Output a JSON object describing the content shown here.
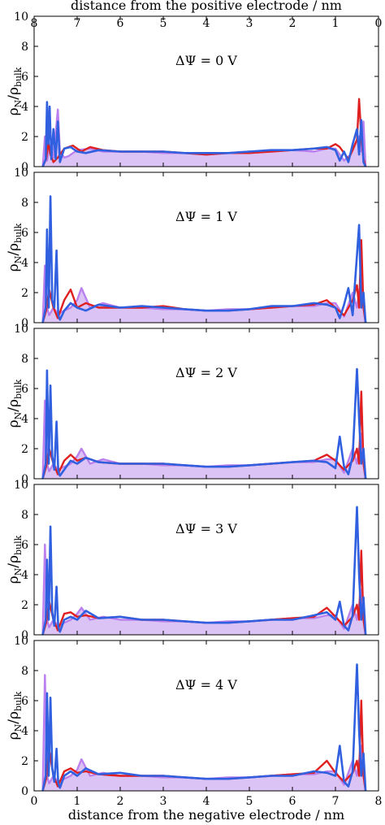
{
  "top_axis": {
    "label": "distance from the positive electrode / nm",
    "ticks": [
      "8",
      "7",
      "6",
      "5",
      "4",
      "3",
      "2",
      "1",
      "0"
    ]
  },
  "bottom_axis": {
    "label": "distance from the negative electrode / nm",
    "ticks": [
      "0",
      "1",
      "2",
      "3",
      "4",
      "5",
      "6",
      "7",
      "8"
    ]
  },
  "y_axis": {
    "label_main": "ρ",
    "label_sub_n": "N",
    "label_slash": "/ρ",
    "label_sub_bulk": "bulk",
    "ticks": [
      "0",
      "2",
      "4",
      "6",
      "8",
      "10"
    ]
  },
  "colors": {
    "red": "#e02020",
    "blue": "#3060e0",
    "violet": "#bb80ee",
    "fill": "#dcc3f5"
  },
  "chart_data": [
    {
      "type": "line",
      "annotation": "ΔΨ = 0 V",
      "xlim": [
        0,
        8
      ],
      "ylim": [
        0,
        10
      ],
      "xlabel": "",
      "ylabel": "ρN/ρbulk",
      "series": [
        {
          "color": "red",
          "x": [
            0.2,
            0.28,
            0.33,
            0.38,
            0.45,
            0.55,
            0.7,
            0.9,
            1.1,
            1.3,
            1.6,
            2.0,
            2.5,
            3.0,
            3.5,
            4.0,
            4.5,
            5.0,
            5.5,
            6.0,
            6.5,
            6.8,
            7.0,
            7.1,
            7.2,
            7.3,
            7.4,
            7.5,
            7.55,
            7.6,
            7.65,
            7.7
          ],
          "y": [
            0,
            0.5,
            1.6,
            0.8,
            0.3,
            0.6,
            1.2,
            1.4,
            1.0,
            1.3,
            1.1,
            1.0,
            1.0,
            1.0,
            0.9,
            0.8,
            0.9,
            0.9,
            1.0,
            1.1,
            1.2,
            1.2,
            1.5,
            1.3,
            0.9,
            0.5,
            1.1,
            1.8,
            4.5,
            2.0,
            0.5,
            0
          ]
        },
        {
          "color": "blue",
          "x": [
            0.2,
            0.27,
            0.3,
            0.33,
            0.36,
            0.4,
            0.45,
            0.5,
            0.55,
            0.6,
            0.7,
            0.85,
            1.0,
            1.2,
            1.5,
            2.0,
            2.5,
            3.0,
            3.5,
            4.0,
            4.5,
            5.0,
            5.5,
            6.0,
            6.5,
            6.8,
            7.0,
            7.1,
            7.2,
            7.3,
            7.4,
            7.5,
            7.55,
            7.6,
            7.65,
            7.7
          ],
          "y": [
            0,
            0.5,
            4.3,
            1.5,
            4.0,
            0.5,
            2.5,
            0.5,
            3.0,
            0.3,
            1.2,
            1.3,
            1.0,
            0.9,
            1.1,
            1.0,
            1.0,
            1.0,
            0.9,
            0.9,
            0.9,
            1.0,
            1.1,
            1.1,
            1.2,
            1.3,
            1.1,
            0.4,
            1.0,
            0.3,
            1.5,
            2.5,
            0.8,
            3.1,
            0.3,
            0
          ]
        },
        {
          "color": "violet",
          "x": [
            0.2,
            0.25,
            0.3,
            0.35,
            0.45,
            0.55,
            0.6,
            0.7,
            0.8,
            1.0,
            1.3,
            1.6,
            2.0,
            2.5,
            3.0,
            3.5,
            4.0,
            4.5,
            5.0,
            5.5,
            6.0,
            6.5,
            6.8,
            7.0,
            7.2,
            7.35,
            7.45,
            7.55,
            7.6,
            7.65,
            7.7
          ],
          "y": [
            0,
            2.0,
            0.4,
            1.3,
            0.6,
            3.8,
            1.0,
            0.6,
            0.7,
            1.1,
            1.2,
            1.0,
            1.0,
            1.0,
            0.9,
            0.9,
            0.8,
            0.9,
            1.0,
            1.0,
            1.1,
            1.0,
            1.2,
            1.2,
            0.4,
            0.8,
            1.5,
            2.0,
            1.0,
            3.0,
            0
          ]
        }
      ]
    },
    {
      "type": "line",
      "annotation": "ΔΨ = 1 V",
      "xlim": [
        0,
        8
      ],
      "ylim": [
        0,
        10
      ],
      "xlabel": "",
      "ylabel": "ρN/ρbulk",
      "series": [
        {
          "color": "red",
          "x": [
            0.2,
            0.28,
            0.35,
            0.45,
            0.55,
            0.7,
            0.85,
            1.0,
            1.2,
            1.5,
            2.0,
            2.5,
            3.0,
            3.5,
            4.0,
            4.5,
            5.0,
            5.5,
            6.0,
            6.5,
            6.8,
            7.0,
            7.2,
            7.4,
            7.5,
            7.55,
            7.6,
            7.65,
            7.7
          ],
          "y": [
            0,
            0.8,
            2.2,
            1.0,
            0.3,
            1.5,
            2.2,
            1.0,
            1.3,
            1.0,
            1.0,
            1.0,
            1.1,
            0.9,
            0.8,
            0.8,
            0.9,
            1.0,
            1.1,
            1.2,
            1.5,
            1.0,
            0.5,
            1.5,
            2.5,
            1.0,
            5.5,
            1.0,
            0
          ]
        },
        {
          "color": "blue",
          "x": [
            0.2,
            0.27,
            0.3,
            0.34,
            0.38,
            0.42,
            0.47,
            0.52,
            0.56,
            0.6,
            0.7,
            0.85,
            1.0,
            1.2,
            1.5,
            2.0,
            2.5,
            3.0,
            3.5,
            4.0,
            4.5,
            5.0,
            5.5,
            6.0,
            6.5,
            6.8,
            7.0,
            7.1,
            7.2,
            7.3,
            7.4,
            7.5,
            7.55,
            7.6,
            7.65,
            7.7
          ],
          "y": [
            0,
            1.0,
            6.2,
            1.0,
            8.4,
            1.5,
            1.0,
            4.8,
            0.5,
            0.2,
            0.8,
            1.3,
            1.0,
            0.8,
            1.2,
            1.0,
            1.1,
            1.0,
            0.9,
            0.8,
            0.8,
            0.9,
            1.1,
            1.1,
            1.3,
            1.2,
            1.0,
            0.3,
            1.2,
            2.3,
            0.5,
            4.5,
            6.5,
            1.0,
            2.0,
            0
          ]
        },
        {
          "color": "violet",
          "x": [
            0.2,
            0.25,
            0.3,
            0.35,
            0.45,
            0.55,
            0.7,
            0.85,
            1.0,
            1.1,
            1.3,
            1.6,
            2.0,
            2.5,
            3.0,
            3.5,
            4.0,
            4.5,
            5.0,
            5.5,
            6.0,
            6.5,
            6.8,
            7.0,
            7.2,
            7.4,
            7.5,
            7.6,
            7.65,
            7.7
          ],
          "y": [
            0,
            3.8,
            1.0,
            0.5,
            1.0,
            0.6,
            0.8,
            1.0,
            1.5,
            2.3,
            1.0,
            1.3,
            1.0,
            1.0,
            0.9,
            0.9,
            0.8,
            0.9,
            0.9,
            1.0,
            1.1,
            1.1,
            1.3,
            1.3,
            0.4,
            2.0,
            1.0,
            3.0,
            1.0,
            0
          ]
        }
      ]
    },
    {
      "type": "line",
      "annotation": "ΔΨ = 2 V",
      "xlim": [
        0,
        8
      ],
      "ylim": [
        0,
        10
      ],
      "xlabel": "",
      "ylabel": "ρN/ρbulk",
      "series": [
        {
          "color": "red",
          "x": [
            0.2,
            0.28,
            0.35,
            0.45,
            0.55,
            0.7,
            0.85,
            1.0,
            1.2,
            1.5,
            2.0,
            2.5,
            3.0,
            3.5,
            4.0,
            4.5,
            5.0,
            5.5,
            6.0,
            6.5,
            6.8,
            7.0,
            7.2,
            7.4,
            7.5,
            7.55,
            7.6,
            7.65,
            7.7
          ],
          "y": [
            0,
            0.8,
            2.0,
            1.0,
            0.3,
            1.2,
            1.6,
            1.2,
            1.4,
            1.1,
            1.0,
            1.0,
            1.0,
            0.9,
            0.8,
            0.8,
            0.9,
            1.0,
            1.1,
            1.2,
            1.6,
            1.2,
            0.6,
            1.2,
            2.0,
            1.0,
            5.8,
            1.0,
            0
          ]
        },
        {
          "color": "blue",
          "x": [
            0.2,
            0.27,
            0.3,
            0.34,
            0.38,
            0.42,
            0.47,
            0.52,
            0.56,
            0.6,
            0.7,
            0.85,
            1.0,
            1.2,
            1.5,
            2.0,
            2.5,
            3.0,
            3.5,
            4.0,
            4.5,
            5.0,
            5.5,
            6.0,
            6.5,
            6.8,
            7.0,
            7.1,
            7.2,
            7.3,
            7.4,
            7.5,
            7.55,
            7.6,
            7.65,
            7.7
          ],
          "y": [
            0,
            1.0,
            7.2,
            1.0,
            6.2,
            1.5,
            0.6,
            3.8,
            0.5,
            0.2,
            0.6,
            1.2,
            1.0,
            1.4,
            1.1,
            1.0,
            1.0,
            1.0,
            0.9,
            0.8,
            0.8,
            0.9,
            1.0,
            1.1,
            1.2,
            1.1,
            0.7,
            2.8,
            0.8,
            0.3,
            1.5,
            7.3,
            4.0,
            1.0,
            2.0,
            0
          ]
        },
        {
          "color": "violet",
          "x": [
            0.2,
            0.25,
            0.3,
            0.35,
            0.45,
            0.55,
            0.7,
            0.85,
            1.0,
            1.1,
            1.3,
            1.6,
            2.0,
            2.5,
            3.0,
            3.5,
            4.0,
            4.5,
            5.0,
            5.5,
            6.0,
            6.5,
            6.8,
            7.0,
            7.2,
            7.4,
            7.5,
            7.6,
            7.65,
            7.7
          ],
          "y": [
            0,
            5.2,
            1.0,
            0.5,
            1.0,
            0.6,
            0.8,
            1.0,
            1.5,
            2.0,
            1.0,
            1.3,
            1.0,
            1.0,
            0.9,
            0.9,
            0.8,
            0.9,
            0.9,
            1.0,
            1.1,
            1.1,
            1.3,
            1.3,
            0.4,
            2.0,
            1.0,
            3.0,
            1.0,
            0
          ]
        }
      ]
    },
    {
      "type": "line",
      "annotation": "ΔΨ = 3 V",
      "xlim": [
        0,
        8
      ],
      "ylim": [
        0,
        10
      ],
      "xlabel": "",
      "ylabel": "ρN/ρbulk",
      "series": [
        {
          "color": "red",
          "x": [
            0.2,
            0.28,
            0.35,
            0.45,
            0.55,
            0.7,
            0.85,
            1.0,
            1.2,
            1.5,
            2.0,
            2.5,
            3.0,
            3.5,
            4.0,
            4.5,
            5.0,
            5.5,
            6.0,
            6.5,
            6.8,
            7.0,
            7.2,
            7.4,
            7.5,
            7.55,
            7.6,
            7.65,
            7.7
          ],
          "y": [
            0,
            0.8,
            2.2,
            1.0,
            0.3,
            1.4,
            1.5,
            1.2,
            1.3,
            1.1,
            1.2,
            1.0,
            1.0,
            0.9,
            0.8,
            0.8,
            0.9,
            1.0,
            1.1,
            1.2,
            1.8,
            1.2,
            0.6,
            1.2,
            2.0,
            1.0,
            5.6,
            1.0,
            0
          ]
        },
        {
          "color": "blue",
          "x": [
            0.2,
            0.27,
            0.3,
            0.34,
            0.38,
            0.42,
            0.47,
            0.52,
            0.56,
            0.6,
            0.7,
            0.85,
            1.0,
            1.2,
            1.5,
            2.0,
            2.5,
            3.0,
            3.5,
            4.0,
            4.5,
            5.0,
            5.5,
            6.0,
            6.5,
            6.8,
            7.0,
            7.1,
            7.2,
            7.3,
            7.4,
            7.5,
            7.55,
            7.6,
            7.65,
            7.7
          ],
          "y": [
            0,
            1.0,
            5.0,
            1.0,
            7.2,
            1.5,
            0.6,
            3.2,
            0.5,
            0.2,
            1.0,
            1.2,
            1.0,
            1.6,
            1.1,
            1.2,
            1.0,
            1.0,
            0.9,
            0.8,
            0.8,
            0.9,
            1.0,
            1.0,
            1.3,
            1.5,
            1.0,
            2.2,
            0.6,
            0.3,
            1.3,
            8.5,
            4.0,
            1.0,
            2.5,
            0
          ]
        },
        {
          "color": "violet",
          "x": [
            0.2,
            0.25,
            0.3,
            0.35,
            0.45,
            0.55,
            0.7,
            0.85,
            1.0,
            1.1,
            1.3,
            1.6,
            2.0,
            2.5,
            3.0,
            3.5,
            4.0,
            4.5,
            5.0,
            5.5,
            6.0,
            6.5,
            6.8,
            7.0,
            7.2,
            7.4,
            7.5,
            7.6,
            7.65,
            7.7
          ],
          "y": [
            0,
            6.0,
            1.0,
            0.5,
            1.0,
            0.6,
            0.8,
            1.0,
            1.4,
            1.8,
            1.0,
            1.2,
            1.0,
            1.0,
            0.9,
            0.9,
            0.8,
            0.9,
            0.9,
            1.0,
            1.1,
            1.1,
            1.3,
            1.3,
            0.4,
            2.0,
            1.0,
            3.0,
            1.0,
            0
          ]
        }
      ]
    },
    {
      "type": "line",
      "annotation": "ΔΨ = 4 V",
      "xlim": [
        0,
        8
      ],
      "ylim": [
        0,
        10
      ],
      "xlabel": "",
      "ylabel": "ρN/ρbulk",
      "series": [
        {
          "color": "red",
          "x": [
            0.2,
            0.28,
            0.35,
            0.45,
            0.55,
            0.7,
            0.85,
            1.0,
            1.2,
            1.5,
            2.0,
            2.5,
            3.0,
            3.5,
            4.0,
            4.5,
            5.0,
            5.5,
            6.0,
            6.5,
            6.8,
            7.0,
            7.2,
            7.4,
            7.5,
            7.55,
            7.6,
            7.65,
            7.7
          ],
          "y": [
            0,
            0.8,
            2.7,
            1.0,
            0.3,
            1.3,
            1.5,
            1.2,
            1.3,
            1.1,
            1.0,
            1.0,
            1.0,
            0.9,
            0.8,
            0.8,
            0.9,
            1.0,
            1.1,
            1.2,
            2.0,
            1.2,
            0.6,
            1.2,
            2.0,
            1.0,
            6.0,
            1.0,
            0
          ]
        },
        {
          "color": "blue",
          "x": [
            0.2,
            0.27,
            0.3,
            0.34,
            0.38,
            0.42,
            0.47,
            0.52,
            0.56,
            0.6,
            0.7,
            0.85,
            1.0,
            1.2,
            1.5,
            2.0,
            2.5,
            3.0,
            3.5,
            4.0,
            4.5,
            5.0,
            5.5,
            6.0,
            6.5,
            6.8,
            7.0,
            7.1,
            7.2,
            7.3,
            7.4,
            7.5,
            7.55,
            7.6,
            7.65,
            7.7
          ],
          "y": [
            0,
            1.0,
            6.5,
            1.0,
            6.2,
            1.5,
            0.6,
            2.8,
            0.5,
            0.2,
            1.0,
            1.3,
            1.0,
            1.5,
            1.1,
            1.2,
            1.0,
            1.0,
            0.9,
            0.8,
            0.8,
            0.9,
            1.0,
            1.0,
            1.3,
            1.2,
            1.0,
            3.0,
            0.6,
            0.3,
            1.3,
            8.4,
            4.0,
            1.0,
            2.5,
            0
          ]
        },
        {
          "color": "violet",
          "x": [
            0.2,
            0.25,
            0.3,
            0.35,
            0.45,
            0.55,
            0.7,
            0.85,
            1.0,
            1.1,
            1.3,
            1.6,
            2.0,
            2.5,
            3.0,
            3.5,
            4.0,
            4.5,
            5.0,
            5.5,
            6.0,
            6.5,
            6.8,
            7.0,
            7.2,
            7.4,
            7.5,
            7.6,
            7.65,
            7.7
          ],
          "y": [
            0,
            7.7,
            1.0,
            0.5,
            1.0,
            0.6,
            0.8,
            1.0,
            1.4,
            2.1,
            1.0,
            1.2,
            1.0,
            1.0,
            0.9,
            0.9,
            0.8,
            0.9,
            0.9,
            1.0,
            1.1,
            1.1,
            1.3,
            1.3,
            0.4,
            2.0,
            1.0,
            3.0,
            1.0,
            0
          ]
        }
      ]
    }
  ]
}
